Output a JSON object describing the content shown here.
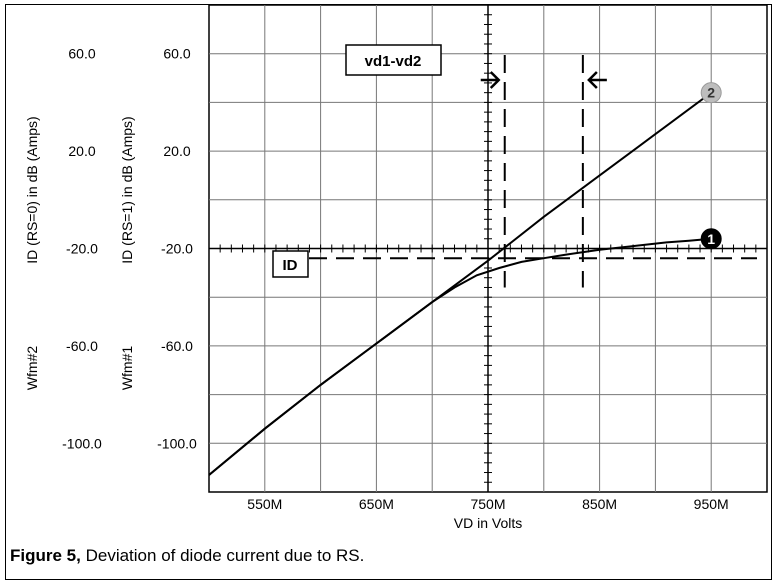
{
  "caption": {
    "figure_label": "Figure 5,",
    "text": "Deviation of diode current due to RS."
  },
  "chart_data": {
    "type": "line",
    "xlabel": "VD in Volts",
    "x_ticks": [
      "550M",
      "650M",
      "750M",
      "850M",
      "950M"
    ],
    "x_tick_values": [
      0.55,
      0.65,
      0.75,
      0.85,
      0.95
    ],
    "xlim": [
      0.5,
      1.0
    ],
    "y_ticks": [
      "60.0",
      "20.0",
      "-20.0",
      "-60.0",
      "-100.0"
    ],
    "y_tick_values": [
      60,
      20,
      -20,
      -60,
      -100
    ],
    "ylim": [
      -120,
      80
    ],
    "grid": true,
    "y_axes": [
      {
        "label": "ID (RS=0) in dB (Amps)",
        "wfm_label": "Wfm#2"
      },
      {
        "label": "ID (RS=1) in dB (Amps)",
        "wfm_label": "Wfm#1"
      }
    ],
    "series": [
      {
        "name": "1",
        "color": "#000000",
        "x": [
          0.5,
          0.55,
          0.6,
          0.65,
          0.7,
          0.72,
          0.74,
          0.76,
          0.78,
          0.8,
          0.82,
          0.85,
          0.88,
          0.91,
          0.93,
          0.95
        ],
        "y": [
          -113,
          -94,
          -76,
          -59,
          -42,
          -36,
          -31,
          -28,
          -25.5,
          -24,
          -22.5,
          -20.5,
          -19,
          -17.5,
          -16.8,
          -16
        ]
      },
      {
        "name": "2",
        "color": "#000000",
        "x": [
          0.5,
          0.55,
          0.6,
          0.65,
          0.7,
          0.75,
          0.8,
          0.85,
          0.9,
          0.95
        ],
        "y": [
          -113,
          -94,
          -76,
          -59,
          -42,
          -25,
          -7,
          10,
          27,
          44
        ]
      }
    ],
    "markers": [
      {
        "label": "1",
        "style": "filled",
        "x": 0.95,
        "y": -16
      },
      {
        "label": "2",
        "style": "gray",
        "x": 0.95,
        "y": 44
      }
    ],
    "annotations": [
      {
        "label": "vd1-vd2",
        "type": "vertical-cursor-pair",
        "x1": 0.765,
        "x2": 0.835
      },
      {
        "label": "ID",
        "type": "horizontal-cursor",
        "y": -24
      }
    ]
  }
}
